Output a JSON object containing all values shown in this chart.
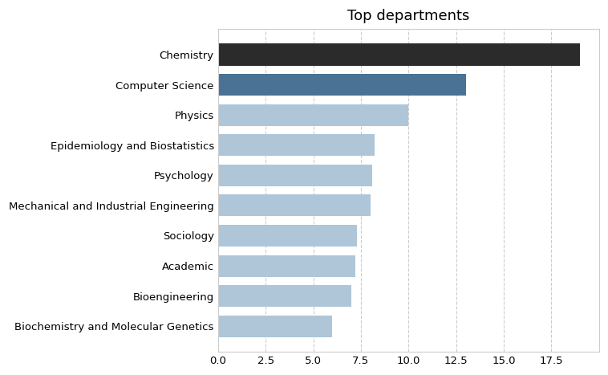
{
  "categories": [
    "Biochemistry and Molecular Genetics",
    "Bioengineering",
    "Academic",
    "Sociology",
    "Mechanical and Industrial Engineering",
    "Psychology",
    "Epidemiology and Biostatistics",
    "Physics",
    "Computer Science",
    "Chemistry"
  ],
  "values": [
    6.0,
    7.0,
    7.2,
    7.3,
    8.0,
    8.1,
    8.2,
    10.0,
    13.0,
    19.0
  ],
  "bar_colors": [
    "#aec6d8",
    "#aec6d8",
    "#aec6d8",
    "#aec6d8",
    "#aec6d8",
    "#aec6d8",
    "#aec6d8",
    "#aec6d8",
    "#4a7294",
    "#2b2b2b"
  ],
  "title": "Top departments",
  "title_fontsize": 13,
  "xlim_max": 20,
  "xticks": [
    0.0,
    2.5,
    5.0,
    7.5,
    10.0,
    12.5,
    15.0,
    17.5
  ],
  "xtick_labels": [
    "0.0",
    "2.5",
    "5.0",
    "7.5",
    "10.0",
    "12.5",
    "15.0",
    "17.5"
  ],
  "background_color": "#ffffff",
  "plot_bg_color": "#ffffff",
  "grid_color": "#cccccc",
  "border_color": "#cccccc"
}
